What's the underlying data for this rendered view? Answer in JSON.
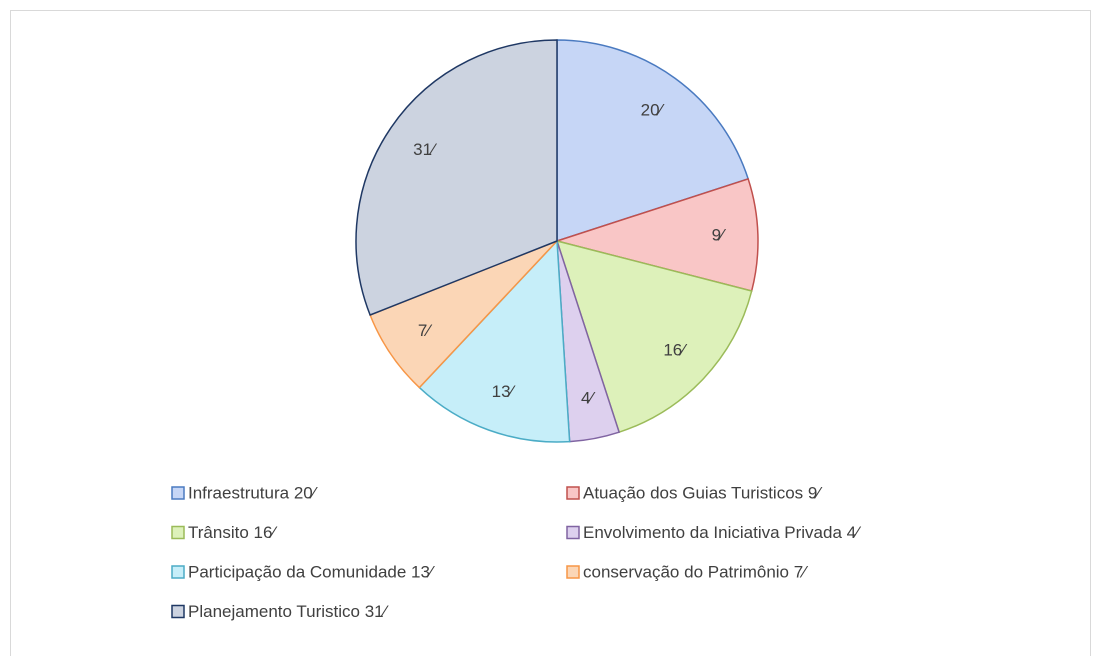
{
  "chart_data": {
    "type": "pie",
    "categories": [
      "Infraestrutura 20⁄",
      "Atuação dos Guias Turisticos 9⁄",
      "Trânsito 16⁄",
      "Envolvimento da Iniciativa Privada 4⁄",
      "Participação da Comunidade 13⁄",
      "conservação do Patrimônio 7⁄",
      "Planejamento Turistico 31⁄"
    ],
    "values": [
      20,
      9,
      16,
      4,
      13,
      7,
      31
    ],
    "value_labels": [
      "20⁄",
      "9⁄",
      "16⁄",
      "4⁄",
      "13⁄",
      "7⁄",
      "31⁄"
    ],
    "colors": [
      "#c6d6f6",
      "#f9c6c6",
      "#ddf1ba",
      "#ddd0ee",
      "#c6eef9",
      "#fbd6b6",
      "#ccd3e0"
    ],
    "edge_colors": [
      "#4a7ac0",
      "#c0504d",
      "#9bbb59",
      "#8064a2",
      "#4bacc6",
      "#f79646",
      "#1f3864"
    ],
    "legend": "bottom"
  }
}
